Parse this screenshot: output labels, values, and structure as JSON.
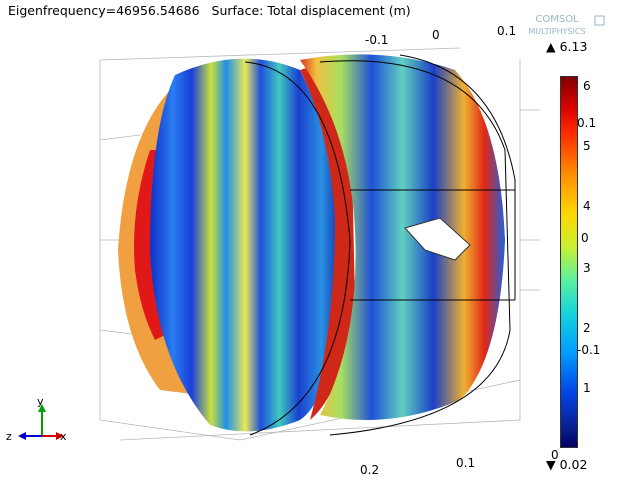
{
  "title": "Eigenfrequency=46956.54686   Surface: Total displacement (m)",
  "logo": {
    "line1": "COMSOL",
    "line2": "MULTIPHYSICS"
  },
  "top_axis_labels": [
    "-0.1",
    "0",
    "0.1"
  ],
  "bottom_axis_labels": [
    "0.2",
    "0.1"
  ],
  "colorbar": {
    "max_label": "▲ 6.13",
    "min_label": "▼ 0.02",
    "ticks_right": [
      "6",
      "5",
      "4",
      "3",
      "2",
      "1",
      "0"
    ],
    "ticks_left": [
      "0.1",
      "0",
      "-0.1"
    ],
    "colors": [
      "#7f0000",
      "#ff2a00",
      "#ffd700",
      "#5af0a0",
      "#00a0ff",
      "#000064"
    ]
  },
  "triad": {
    "y": "y",
    "z": "z",
    "x": "x"
  }
}
